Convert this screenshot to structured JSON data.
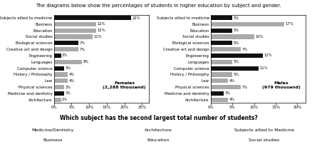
{
  "title": "The diagrams below show the percentages of students in higher education by subject and gender.",
  "annotations": [
    "Which subject has the second largest total number of students?",
    "Medicine/Dentistry",
    "Architecture",
    "Subjects allied to Medicine",
    "Business",
    "Education",
    "Social studies"
  ],
  "chart_data": [
    {
      "type": "bar",
      "orientation": "horizontal",
      "categories": [
        "Subjects allied to medicine",
        "Business",
        "Education",
        "Social studies",
        "Biological sciences",
        "Creative art and design",
        "Engineering",
        "Languages",
        "Computer science",
        "History / Philosophy",
        "Law",
        "Physical sciences",
        "Medicine and dentistry",
        "Architecture"
      ],
      "values": [
        22,
        12,
        12,
        11,
        7,
        7,
        2,
        8,
        3,
        4,
        4,
        3,
        3,
        2
      ],
      "value_labels": [
        "22%",
        "12%",
        "12%",
        "11%",
        "7%",
        "7%",
        "2%",
        "8%",
        "3%",
        "4%",
        "4%",
        "3%",
        "3%",
        "2%"
      ],
      "data_labels": true,
      "colors": [
        "#111111",
        "#aaaaaa",
        "#aaaaaa",
        "#aaaaaa",
        "#111111",
        "#aaaaaa",
        "#111111",
        "#aaaaaa",
        "#111111",
        "#aaaaaa",
        "#aaaaaa",
        "#aaaaaa",
        "#111111",
        "#aaaaaa"
      ],
      "xlim": [
        0,
        27
      ],
      "xticks": [
        {
          "value": 0,
          "label": "0%"
        },
        {
          "value": 5,
          "label": "5%"
        },
        {
          "value": 10,
          "label": "10%"
        },
        {
          "value": 15,
          "label": "15%"
        },
        {
          "value": 20,
          "label": "20%"
        },
        {
          "value": 25,
          "label": "25%"
        }
      ],
      "annotations": [
        "Females\n(2,288 thousand)"
      ]
    },
    {
      "type": "bar",
      "orientation": "horizontal",
      "categories": [
        "Subjects allied to medicine",
        "Business",
        "Education",
        "Social studies",
        "Biological sciences",
        "Creative art and design",
        "Engineering",
        "Languages",
        "Computer science",
        "History / Philosophy",
        "Law",
        "Physical sciences",
        "Medicine and dentistry",
        "Architecture"
      ],
      "values": [
        5,
        17,
        5,
        10,
        5,
        7,
        12,
        5,
        11,
        5,
        4,
        7,
        3,
        4
      ],
      "value_labels": [
        "5%",
        "17%",
        "5%",
        "10%",
        "5%",
        "7%",
        "12%",
        "5%",
        "11%",
        "5%",
        "4%",
        "7%",
        "3%",
        "4%"
      ],
      "data_labels": true,
      "colors": [
        "#111111",
        "#aaaaaa",
        "#111111",
        "#aaaaaa",
        "#111111",
        "#aaaaaa",
        "#111111",
        "#aaaaaa",
        "#111111",
        "#aaaaaa",
        "#aaaaaa",
        "#aaaaaa",
        "#111111",
        "#aaaaaa"
      ],
      "xlim": [
        0,
        22
      ],
      "xticks": [
        {
          "value": 0,
          "label": "0%"
        },
        {
          "value": 5,
          "label": "5%"
        },
        {
          "value": 10,
          "label": "10%"
        },
        {
          "value": 15,
          "label": "15%"
        },
        {
          "value": 20,
          "label": "20%"
        }
      ],
      "annotations": [
        "Males\n(979 thousand)"
      ]
    }
  ]
}
